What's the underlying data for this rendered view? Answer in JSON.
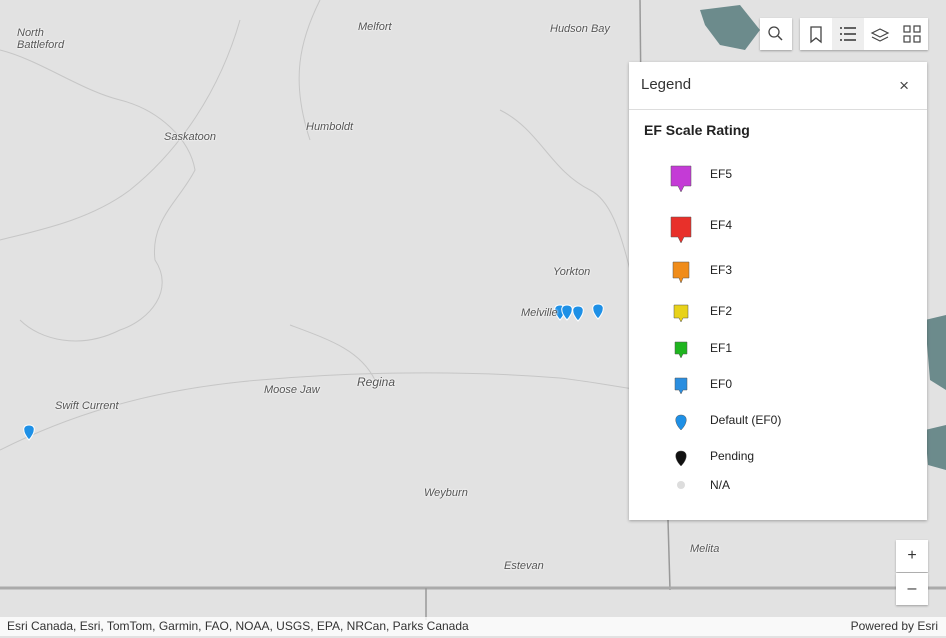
{
  "map": {
    "places": [
      "North Battleford",
      "Melfort",
      "Hudson Bay",
      "Saskatoon",
      "Humboldt",
      "Yorkton",
      "Melville",
      "Moose Jaw",
      "Regina",
      "Swift Current",
      "Weyburn",
      "Estevan",
      "Melita"
    ]
  },
  "legend": {
    "title": "Legend",
    "close": "×",
    "heading": "EF Scale Rating",
    "items": [
      "EF5",
      "EF4",
      "EF3",
      "EF2",
      "EF1",
      "EF0",
      "Default (EF0)",
      "Pending",
      "N/A"
    ]
  },
  "zoom": {
    "in": "+",
    "out": "–"
  },
  "attribution": "Esri Canada, Esri, TomTom, Garmin, FAO, NOAA, USGS, EPA, NRCan, Parks Canada",
  "powered_by": "Powered by Esri"
}
